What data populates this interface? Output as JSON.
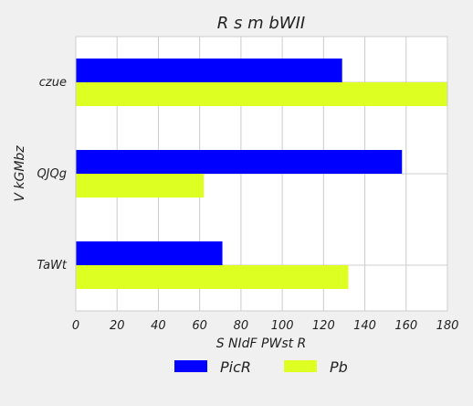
{
  "chart_data": {
    "type": "bar",
    "orientation": "horizontal",
    "title": "R s  m bWII",
    "xlabel": "S NIdF PWst R",
    "ylabel": "V kGMbz",
    "categories": [
      "czue",
      "QJQg",
      "TaWt"
    ],
    "series": [
      {
        "name": "PicR",
        "values": [
          129,
          158,
          71
        ],
        "color": "#0000ff"
      },
      {
        "name": "Pb",
        "values": [
          180,
          62,
          132
        ],
        "color": "#ddff22"
      }
    ],
    "xlim": [
      0,
      180
    ],
    "xticks": [
      0,
      20,
      40,
      60,
      80,
      100,
      120,
      140,
      160,
      180
    ],
    "grid": true,
    "legend_position": "bottom"
  }
}
